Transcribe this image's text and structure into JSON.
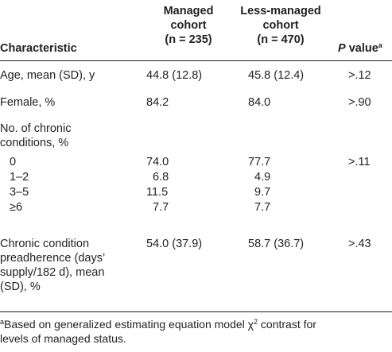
{
  "table": {
    "headers": {
      "characteristic": "Characteristic",
      "managed_line1": "Managed",
      "managed_line2": "cohort",
      "managed_line3": "(n = 235)",
      "less_line1": "Less-managed",
      "less_line2": "cohort",
      "less_line3": "(n = 470)",
      "p_label": "P",
      "p_suffix": " value",
      "p_sup": "a"
    },
    "rows": [
      {
        "label": "Age, mean (SD), y",
        "managed": "44.8 (12.8)",
        "less": "45.8 (12.4)",
        "p": ">.12"
      },
      {
        "label": "Female, %",
        "managed": "84.2",
        "less": "84.0",
        "p": ">.90"
      },
      {
        "label_line1": "No. of chronic",
        "label_line2": "conditions, %"
      },
      {
        "label": "0",
        "managed": "74.0",
        "less": "77.7",
        "p": ">.11"
      },
      {
        "label": "1–2",
        "managed": "6.8",
        "less": "4.9",
        "p": ""
      },
      {
        "label": "3–5",
        "managed": "11.5",
        "less": "9.7",
        "p": ""
      },
      {
        "label": "≥6",
        "managed": "7.7",
        "less": "7.7",
        "p": ""
      },
      {
        "label_line1": "Chronic condition",
        "label_line2": "preadherence (days’",
        "label_line3": "supply/182 d), mean",
        "label_line4": "(SD), %",
        "managed": "54.0 (37.9)",
        "less": "58.7 (36.7)",
        "p": ">.43"
      }
    ]
  },
  "footnote": {
    "sup": "a",
    "text_before": "Based on generalized estimating equation model ",
    "chi": "χ",
    "chi_sup": "2",
    "text_after": " contrast for",
    "line2": "levels of managed status."
  }
}
